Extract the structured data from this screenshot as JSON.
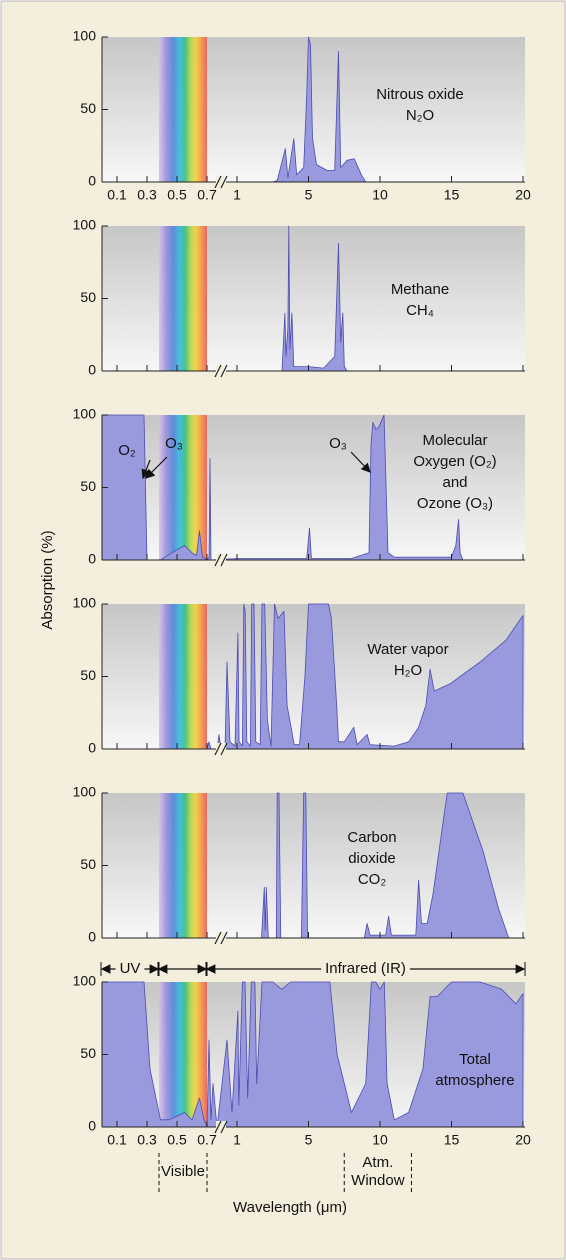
{
  "chart_data": [
    {
      "type": "area",
      "label_lines": [
        "Nitrous oxide",
        "N₂O"
      ],
      "color": "#9999dd",
      "xtick_labels": true,
      "x": [
        3.0,
        3.25,
        3.7,
        3.85,
        4.18,
        4.34,
        4.73,
        4.9,
        5.0,
        5.14,
        5.28,
        5.56,
        6.3,
        6.83,
        7.1,
        7.25,
        7.7,
        8.2,
        8.7,
        9.0
      ],
      "values": [
        0,
        1,
        23,
        3,
        30,
        5,
        10,
        60,
        100,
        95,
        30,
        12,
        8,
        8,
        90,
        10,
        15,
        16,
        5,
        0
      ],
      "xlim": [
        0,
        20
      ],
      "xticks": [
        0.1,
        0.3,
        0.5,
        0.7,
        1,
        5,
        10,
        15,
        20
      ],
      "ylim": [
        0,
        100
      ],
      "yticks": [
        0,
        50,
        100
      ]
    },
    {
      "type": "area",
      "label_lines": [
        "Methane",
        "CH₄"
      ],
      "color": "#9999dd",
      "xtick_labels": false,
      "x": [
        3.52,
        3.68,
        3.74,
        3.85,
        3.9,
        3.96,
        4.07,
        4.18,
        5.0,
        6.06,
        6.83,
        6.97,
        7.1,
        7.25,
        7.4,
        7.5,
        7.7
      ],
      "values": [
        0,
        40,
        10,
        30,
        100,
        15,
        40,
        3,
        3,
        2,
        10,
        50,
        88,
        20,
        40,
        3,
        0
      ],
      "xlim": [
        0,
        20
      ],
      "xticks": [
        0.1,
        0.3,
        0.5,
        0.7,
        1,
        5,
        10,
        15,
        20
      ],
      "ylim": [
        0,
        100
      ],
      "yticks": [
        0,
        50,
        100
      ]
    },
    {
      "type": "area",
      "label_lines": [
        "Molecular",
        "Oxygen (O₂)",
        "and",
        "Ozone (O₃)"
      ],
      "annotations": [
        "O₂",
        "O₃",
        "O₃"
      ],
      "color": "#9999dd",
      "xtick_labels": false,
      "x": [
        0,
        0.28,
        0.29,
        0.3,
        0.39,
        0.45,
        0.55,
        0.6,
        0.63,
        0.65,
        0.67,
        0.7,
        0.72,
        0.73,
        0.74,
        1.0,
        4.9,
        5.07,
        5.2,
        8.0,
        9.23,
        9.37,
        9.5,
        9.72,
        9.93,
        10.28,
        10.4,
        10.56,
        11,
        15,
        15.3,
        15.5,
        15.6,
        15.8,
        17.8
      ],
      "values": [
        100,
        100,
        50,
        0,
        0,
        4,
        10,
        5,
        3,
        20,
        2,
        0,
        2,
        70,
        0,
        1,
        1,
        22,
        1,
        1,
        5,
        80,
        95,
        90,
        92,
        100,
        60,
        5,
        2,
        2,
        10,
        28,
        5,
        0,
        0
      ],
      "xlim": [
        0,
        20
      ],
      "xticks": [
        0.1,
        0.3,
        0.5,
        0.7,
        1,
        5,
        10,
        15,
        20
      ],
      "ylim": [
        0,
        100
      ],
      "yticks": [
        0,
        50,
        100
      ]
    },
    {
      "type": "area",
      "label_lines": [
        "Water vapor",
        "H₂O"
      ],
      "color": "#9999dd",
      "xtick_labels": false,
      "x": [
        0.35,
        0.7,
        0.72,
        0.74,
        0.8,
        0.82,
        0.84,
        0.88,
        0.9,
        0.93,
        0.98,
        1.05,
        1.12,
        1.3,
        1.38,
        1.46,
        1.55,
        1.75,
        1.82,
        1.95,
        2.05,
        2.3,
        2.4,
        2.55,
        2.7,
        2.9,
        3.1,
        3.3,
        3.63,
        3.8,
        4.2,
        4.5,
        4.8,
        5.0,
        5.2,
        6.4,
        6.6,
        6.97,
        7.1,
        7.5,
        8.17,
        8.4,
        9.1,
        9.3,
        11,
        12,
        12.7,
        13.2,
        13.5,
        13.8,
        14.9,
        17,
        18.8,
        20
      ],
      "values": [
        0,
        0,
        5,
        0,
        0,
        10,
        0,
        0,
        60,
        5,
        2,
        80,
        5,
        2,
        100,
        95,
        5,
        2,
        100,
        100,
        5,
        3,
        100,
        100,
        20,
        2,
        100,
        90,
        95,
        30,
        3,
        3,
        50,
        100,
        100,
        100,
        90,
        30,
        5,
        5,
        15,
        3,
        10,
        3,
        2,
        5,
        15,
        30,
        55,
        40,
        45,
        60,
        75,
        92
      ],
      "xlim": [
        0,
        20
      ],
      "xticks": [
        0.1,
        0.3,
        0.5,
        0.7,
        1,
        5,
        10,
        15,
        20
      ],
      "ylim": [
        0,
        100
      ],
      "yticks": [
        0,
        50,
        100
      ]
    },
    {
      "type": "area",
      "label_lines": [
        "Carbon",
        "dioxide",
        "CO₂"
      ],
      "color": "#9999dd",
      "xtick_labels": false,
      "x": [
        2.37,
        2.53,
        2.58,
        2.64,
        2.75,
        3.2,
        3.25,
        3.35,
        3.45,
        4.6,
        4.73,
        4.85,
        4.95,
        8.9,
        9.1,
        9.3,
        10.4,
        10.6,
        10.8,
        12.5,
        12.7,
        12.9,
        13.3,
        13.7,
        14.7,
        15.8,
        17.2,
        18.3,
        19.0
      ],
      "values": [
        0,
        35,
        5,
        35,
        0,
        0,
        100,
        100,
        0,
        0,
        100,
        100,
        0,
        0,
        10,
        2,
        2,
        15,
        2,
        2,
        40,
        10,
        10,
        30,
        100,
        100,
        60,
        20,
        0
      ],
      "xlim": [
        0,
        20
      ],
      "xticks": [
        0.1,
        0.3,
        0.5,
        0.7,
        1,
        5,
        10,
        15,
        20
      ],
      "ylim": [
        0,
        100
      ],
      "yticks": [
        0,
        50,
        100
      ]
    },
    {
      "type": "area",
      "label_lines": [
        "Total",
        "atmosphere"
      ],
      "color": "#9999dd",
      "xtick_labels": true,
      "x": [
        0,
        0.28,
        0.32,
        0.39,
        0.45,
        0.55,
        0.6,
        0.65,
        0.68,
        0.7,
        0.72,
        0.74,
        0.76,
        0.8,
        0.9,
        0.95,
        1.05,
        1.1,
        1.3,
        1.45,
        1.6,
        1.8,
        2.0,
        2.1,
        2.4,
        3.0,
        3.5,
        4.0,
        5.2,
        6.5,
        7.0,
        7.5,
        8.0,
        8.5,
        9.0,
        9.4,
        9.7,
        10.0,
        10.3,
        10.5,
        11,
        12,
        13,
        13.5,
        14,
        15,
        17,
        18.5,
        19.5,
        20
      ],
      "values": [
        100,
        100,
        40,
        5,
        5,
        10,
        5,
        20,
        5,
        0,
        60,
        5,
        30,
        0,
        60,
        10,
        80,
        15,
        100,
        100,
        20,
        100,
        100,
        30,
        100,
        100,
        95,
        100,
        100,
        100,
        50,
        30,
        10,
        20,
        30,
        100,
        100,
        95,
        100,
        30,
        5,
        10,
        40,
        90,
        90,
        100,
        100,
        95,
        85,
        92
      ],
      "xlim": [
        0,
        20
      ],
      "xticks": [
        0.1,
        0.3,
        0.5,
        0.7,
        1,
        5,
        10,
        15,
        20
      ],
      "ylim": [
        0,
        100
      ],
      "yticks": [
        0,
        50,
        100
      ]
    }
  ],
  "figure": {
    "ylabel": "Absorption (%)",
    "xlabel": "Wavelength (μm)",
    "spectrum": [
      0.38,
      0.7
    ],
    "top_bands": [
      {
        "label": "UV",
        "range": [
          0,
          0.38
        ]
      },
      {
        "range": [
          0.38,
          0.7
        ]
      },
      {
        "label": "Infrared (IR)",
        "range": [
          0.7,
          20
        ]
      }
    ],
    "bottom_bands": [
      {
        "label": [
          "Visible"
        ],
        "range": [
          0.38,
          0.7
        ]
      },
      {
        "label": [
          "Atm.",
          "Window"
        ],
        "range": [
          7.5,
          12.2
        ]
      }
    ]
  }
}
